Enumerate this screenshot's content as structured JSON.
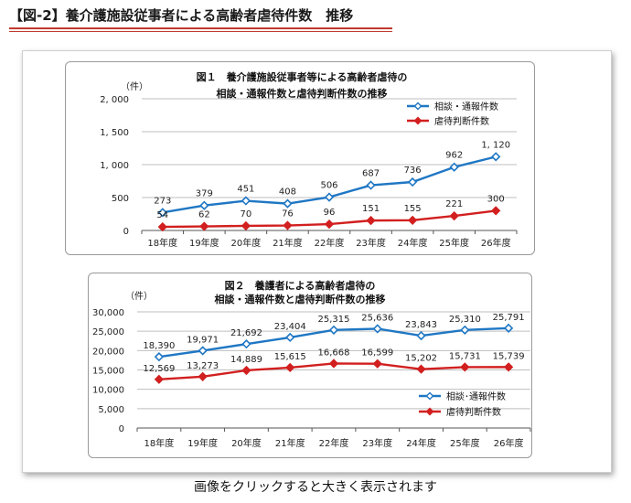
{
  "page": {
    "heading": "【図-2】養介護施設従事者による高齢者虐待件数　推移",
    "caption": "画像をクリックすると大きく表示されます"
  },
  "colors": {
    "heading_rule": "#c0392b",
    "series_consult": "#1f77c4",
    "series_abuse": "#d21f1f",
    "grid": "#bfbfbf",
    "axis_text": "#222222"
  },
  "chart_data": [
    {
      "type": "line",
      "title_lines": [
        "図１　養介護施設従事者等による高齢者虐待の",
        "相談・通報件数と虐待判断件数の推移"
      ],
      "ylabel": "（件）",
      "xlabel": "",
      "categories": [
        "18年度",
        "19年度",
        "20年度",
        "21年度",
        "22年度",
        "23年度",
        "24年度",
        "25年度",
        "26年度"
      ],
      "ylim": [
        0,
        2000
      ],
      "yticks": [
        0,
        500,
        1000,
        1500,
        2000
      ],
      "ytick_labels": [
        "0",
        "500",
        "1, 000",
        "1, 500",
        "2, 000"
      ],
      "grid": "horizontal",
      "legend_position": "top-right",
      "series": [
        {
          "name": "相談・通報件数",
          "color": "#1f77c4",
          "marker": "diamond-open",
          "values": [
            273,
            379,
            451,
            408,
            506,
            687,
            736,
            962,
            1120
          ],
          "labels": [
            "273",
            "379",
            "451",
            "408",
            "506",
            "687",
            "736",
            "962",
            "1, 120"
          ],
          "label_position": "above"
        },
        {
          "name": "虐待判断件数",
          "color": "#d21f1f",
          "marker": "diamond-filled",
          "values": [
            54,
            62,
            70,
            76,
            96,
            151,
            155,
            221,
            300
          ],
          "labels": [
            "54",
            "62",
            "70",
            "76",
            "96",
            "151",
            "155",
            "221",
            "300"
          ],
          "label_position": "above"
        }
      ]
    },
    {
      "type": "line",
      "title_lines": [
        "図２　養護者による高齢者虐待の",
        "相談・通報件数と虐待判断件数の推移"
      ],
      "ylabel": "（件）",
      "xlabel": "",
      "categories": [
        "18年度",
        "19年度",
        "20年度",
        "21年度",
        "22年度",
        "23年度",
        "24年度",
        "25年度",
        "26年度"
      ],
      "ylim": [
        0,
        30000
      ],
      "yticks": [
        0,
        5000,
        10000,
        15000,
        20000,
        25000,
        30000
      ],
      "ytick_labels": [
        "0",
        "5,000",
        "10,000",
        "15,000",
        "20,000",
        "25,000",
        "30,000"
      ],
      "grid": "horizontal",
      "legend_position": "bottom-right",
      "series": [
        {
          "name": "相談･通報件数",
          "color": "#1f77c4",
          "marker": "diamond-open",
          "values": [
            18390,
            19971,
            21692,
            23404,
            25315,
            25636,
            23843,
            25310,
            25791
          ],
          "labels": [
            "18,390",
            "19,971",
            "21,692",
            "23,404",
            "25,315",
            "25,636",
            "23,843",
            "25,310",
            "25,791"
          ],
          "label_position": "above"
        },
        {
          "name": "虐待判断件数",
          "color": "#d21f1f",
          "marker": "diamond-filled",
          "values": [
            12569,
            13273,
            14889,
            15615,
            16668,
            16599,
            15202,
            15731,
            15739
          ],
          "labels": [
            "12,569",
            "13,273",
            "14,889",
            "15,615",
            "16,668",
            "16,599",
            "15,202",
            "15,731",
            "15,739"
          ],
          "label_position": "above"
        }
      ]
    }
  ]
}
